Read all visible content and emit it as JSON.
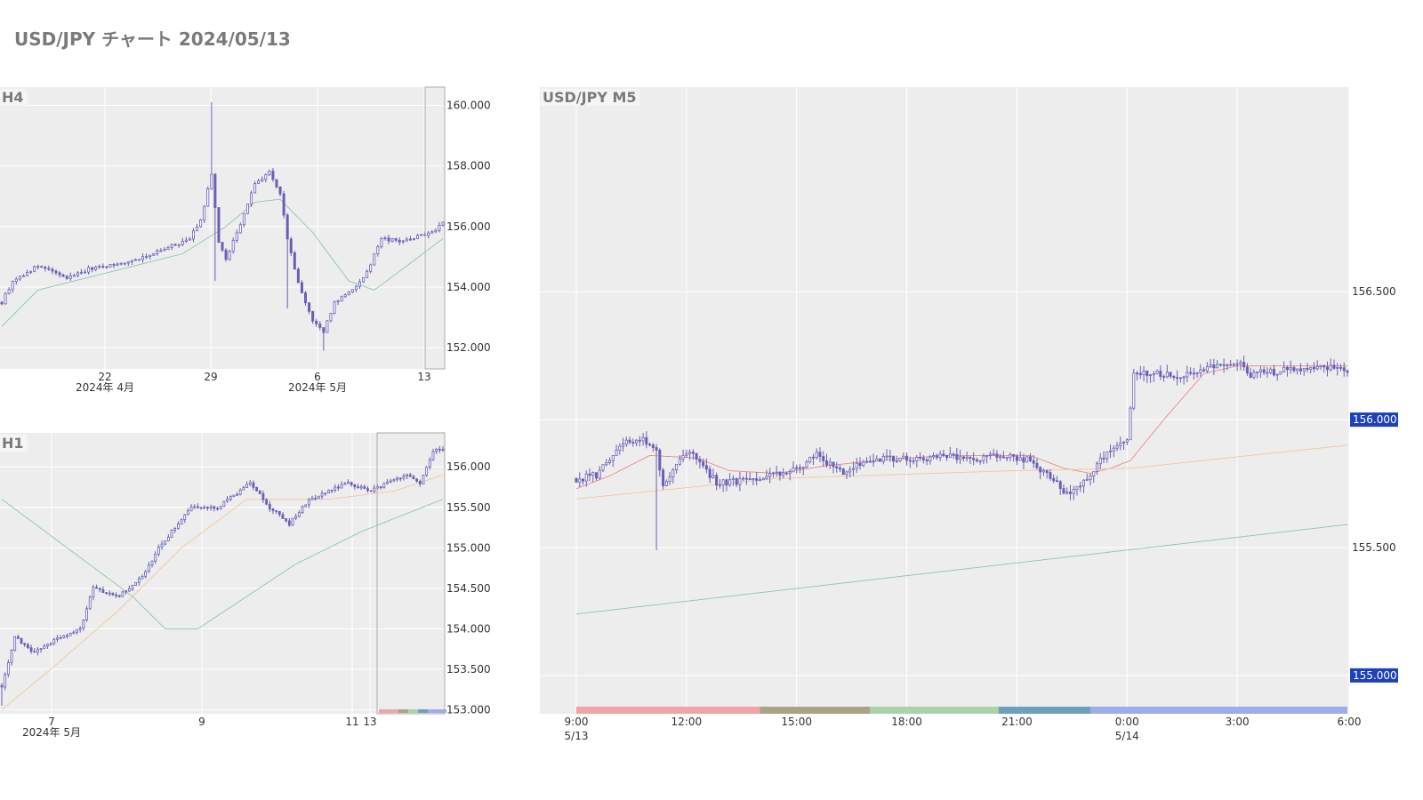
{
  "page": {
    "title": "USD/JPY チャート 2024/05/13"
  },
  "colors": {
    "plot_bg": "#ededed",
    "grid": "#ffffff",
    "candle": "#6a5fb5",
    "ma_short": "#e88a8a",
    "ma_mid": "#f0c89a",
    "ma_long": "#8fc4b0",
    "highlight_bg": "#1e40b8",
    "sessions": [
      "#eea4aa",
      "#aaa285",
      "#a9d3a8",
      "#6f9fbf",
      "#9eacea"
    ]
  },
  "chart_data": [
    {
      "id": "h4",
      "type": "candlestick",
      "title": "H4",
      "ylim": [
        151.3,
        160.6
      ],
      "y_ticks": [
        "160.000",
        "158.000",
        "156.000",
        "154.000",
        "152.000"
      ],
      "x_ticks": [
        "22",
        "29",
        "6",
        "13"
      ],
      "x_month_labels": [
        "2024年 4月",
        "2024年 5月"
      ],
      "anchors": [
        {
          "t": 0,
          "p": 153.5
        },
        {
          "t": 3,
          "p": 154.2
        },
        {
          "t": 10,
          "p": 154.7
        },
        {
          "t": 18,
          "p": 154.3
        },
        {
          "t": 24,
          "p": 154.6
        },
        {
          "t": 34,
          "p": 154.8
        },
        {
          "t": 44,
          "p": 155.2
        },
        {
          "t": 52,
          "p": 155.6
        },
        {
          "t": 55,
          "p": 156.2
        },
        {
          "t": 58,
          "p": 157.7
        },
        {
          "t": 60,
          "p": 155.5
        },
        {
          "t": 62,
          "p": 154.9
        },
        {
          "t": 66,
          "p": 156.1
        },
        {
          "t": 70,
          "p": 157.4
        },
        {
          "t": 74,
          "p": 157.8
        },
        {
          "t": 77,
          "p": 157.1
        },
        {
          "t": 79,
          "p": 155.6
        },
        {
          "t": 82,
          "p": 154.1
        },
        {
          "t": 86,
          "p": 152.9
        },
        {
          "t": 89,
          "p": 152.5
        },
        {
          "t": 92,
          "p": 153.5
        },
        {
          "t": 97,
          "p": 153.9
        },
        {
          "t": 101,
          "p": 154.5
        },
        {
          "t": 105,
          "p": 155.6
        },
        {
          "t": 110,
          "p": 155.5
        },
        {
          "t": 116,
          "p": 155.7
        },
        {
          "t": 120,
          "p": 155.9
        },
        {
          "t": 122,
          "p": 156.2
        }
      ],
      "ma": [
        {
          "name": "",
          "color": "#8fc4b0",
          "points": [
            {
              "t": 0,
              "p": 152.7
            },
            {
              "t": 10,
              "p": 153.9
            },
            {
              "t": 30,
              "p": 154.5
            },
            {
              "t": 50,
              "p": 155.1
            },
            {
              "t": 62,
              "p": 156.0
            },
            {
              "t": 70,
              "p": 156.8
            },
            {
              "t": 77,
              "p": 156.9
            },
            {
              "t": 86,
              "p": 155.8
            },
            {
              "t": 96,
              "p": 154.2
            },
            {
              "t": 103,
              "p": 153.9
            },
            {
              "t": 112,
              "p": 154.7
            },
            {
              "t": 122,
              "p": 155.6
            }
          ]
        }
      ]
    },
    {
      "id": "h1",
      "type": "candlestick",
      "title": "H1",
      "ylim": [
        152.95,
        156.42
      ],
      "y_ticks": [
        "156.000",
        "155.500",
        "155.000",
        "154.500",
        "154.000",
        "153.500",
        "153.000"
      ],
      "x_ticks": [
        "7",
        "9",
        "11",
        "13"
      ],
      "x_month_labels": [
        "2024年 5月"
      ],
      "anchors": [
        {
          "t": 0,
          "p": 153.3
        },
        {
          "t": 4,
          "p": 153.9
        },
        {
          "t": 10,
          "p": 153.7
        },
        {
          "t": 18,
          "p": 153.9
        },
        {
          "t": 24,
          "p": 154.0
        },
        {
          "t": 28,
          "p": 154.5
        },
        {
          "t": 36,
          "p": 154.4
        },
        {
          "t": 44,
          "p": 154.7
        },
        {
          "t": 48,
          "p": 155.0
        },
        {
          "t": 52,
          "p": 155.2
        },
        {
          "t": 58,
          "p": 155.5
        },
        {
          "t": 66,
          "p": 155.5
        },
        {
          "t": 76,
          "p": 155.8
        },
        {
          "t": 82,
          "p": 155.5
        },
        {
          "t": 88,
          "p": 155.3
        },
        {
          "t": 94,
          "p": 155.6
        },
        {
          "t": 100,
          "p": 155.7
        },
        {
          "t": 106,
          "p": 155.8
        },
        {
          "t": 112,
          "p": 155.7
        },
        {
          "t": 118,
          "p": 155.8
        },
        {
          "t": 124,
          "p": 155.9
        },
        {
          "t": 128,
          "p": 155.8
        },
        {
          "t": 132,
          "p": 156.2
        },
        {
          "t": 135,
          "p": 156.2
        }
      ],
      "ma": [
        {
          "name": "",
          "color": "#8fc4b0",
          "points": [
            {
              "t": 0,
              "p": 155.6
            },
            {
              "t": 20,
              "p": 155.0
            },
            {
              "t": 40,
              "p": 154.4
            },
            {
              "t": 50,
              "p": 154.0
            },
            {
              "t": 60,
              "p": 154.0
            },
            {
              "t": 75,
              "p": 154.4
            },
            {
              "t": 90,
              "p": 154.8
            },
            {
              "t": 110,
              "p": 155.2
            },
            {
              "t": 135,
              "p": 155.6
            }
          ]
        },
        {
          "name": "",
          "color": "#f0c89a",
          "points": [
            {
              "t": 0,
              "p": 153.0
            },
            {
              "t": 15,
              "p": 153.5
            },
            {
              "t": 35,
              "p": 154.2
            },
            {
              "t": 55,
              "p": 155.0
            },
            {
              "t": 75,
              "p": 155.6
            },
            {
              "t": 100,
              "p": 155.6
            },
            {
              "t": 120,
              "p": 155.7
            },
            {
              "t": 135,
              "p": 155.9
            }
          ]
        }
      ]
    },
    {
      "id": "m5",
      "type": "candlestick",
      "title": "USD/JPY M5",
      "ylim": [
        154.85,
        157.3
      ],
      "y_ticks": [
        "156.500",
        "156.000",
        "155.500",
        "155.000"
      ],
      "highlighted_y_ticks": [
        "156.000",
        "155.000"
      ],
      "x_ticks": [
        {
          "label": "9:00",
          "sub": "5/13"
        },
        {
          "label": "12:00",
          "sub": ""
        },
        {
          "label": "15:00",
          "sub": ""
        },
        {
          "label": "18:00",
          "sub": ""
        },
        {
          "label": "21:00",
          "sub": ""
        },
        {
          "label": "0:00",
          "sub": "5/14"
        },
        {
          "label": "3:00",
          "sub": ""
        },
        {
          "label": "6:00",
          "sub": ""
        }
      ],
      "anchors": [
        {
          "t": 0,
          "p": 155.77
        },
        {
          "t": 6,
          "p": 155.78
        },
        {
          "t": 10,
          "p": 155.85
        },
        {
          "t": 14,
          "p": 155.9
        },
        {
          "t": 18,
          "p": 155.93
        },
        {
          "t": 22,
          "p": 155.91
        },
        {
          "t": 24,
          "p": 155.88
        },
        {
          "t": 26,
          "p": 155.75
        },
        {
          "t": 30,
          "p": 155.82
        },
        {
          "t": 34,
          "p": 155.88
        },
        {
          "t": 38,
          "p": 155.82
        },
        {
          "t": 42,
          "p": 155.75
        },
        {
          "t": 48,
          "p": 155.76
        },
        {
          "t": 54,
          "p": 155.77
        },
        {
          "t": 60,
          "p": 155.79
        },
        {
          "t": 66,
          "p": 155.8
        },
        {
          "t": 70,
          "p": 155.84
        },
        {
          "t": 72,
          "p": 155.86
        },
        {
          "t": 76,
          "p": 155.82
        },
        {
          "t": 80,
          "p": 155.8
        },
        {
          "t": 84,
          "p": 155.83
        },
        {
          "t": 90,
          "p": 155.85
        },
        {
          "t": 96,
          "p": 155.84
        },
        {
          "t": 104,
          "p": 155.85
        },
        {
          "t": 112,
          "p": 155.86
        },
        {
          "t": 120,
          "p": 155.85
        },
        {
          "t": 130,
          "p": 155.86
        },
        {
          "t": 136,
          "p": 155.84
        },
        {
          "t": 142,
          "p": 155.78
        },
        {
          "t": 146,
          "p": 155.72
        },
        {
          "t": 150,
          "p": 155.73
        },
        {
          "t": 154,
          "p": 155.78
        },
        {
          "t": 158,
          "p": 155.86
        },
        {
          "t": 162,
          "p": 155.89
        },
        {
          "t": 165,
          "p": 155.92
        },
        {
          "t": 167,
          "p": 156.18
        },
        {
          "t": 172,
          "p": 156.18
        },
        {
          "t": 180,
          "p": 156.17
        },
        {
          "t": 186,
          "p": 156.19
        },
        {
          "t": 194,
          "p": 156.22
        },
        {
          "t": 198,
          "p": 156.23
        },
        {
          "t": 202,
          "p": 156.18
        },
        {
          "t": 210,
          "p": 156.19
        },
        {
          "t": 220,
          "p": 156.2
        },
        {
          "t": 228,
          "p": 156.21
        },
        {
          "t": 231,
          "p": 156.19
        }
      ],
      "ma": [
        {
          "name": "",
          "color": "#e88a8a",
          "points": [
            {
              "t": 0,
              "p": 155.73
            },
            {
              "t": 10,
              "p": 155.78
            },
            {
              "t": 22,
              "p": 155.86
            },
            {
              "t": 36,
              "p": 155.85
            },
            {
              "t": 46,
              "p": 155.8
            },
            {
              "t": 60,
              "p": 155.79
            },
            {
              "t": 75,
              "p": 155.82
            },
            {
              "t": 90,
              "p": 155.84
            },
            {
              "t": 110,
              "p": 155.86
            },
            {
              "t": 136,
              "p": 155.86
            },
            {
              "t": 146,
              "p": 155.81
            },
            {
              "t": 154,
              "p": 155.79
            },
            {
              "t": 160,
              "p": 155.81
            },
            {
              "t": 166,
              "p": 155.84
            },
            {
              "t": 176,
              "p": 156.0
            },
            {
              "t": 188,
              "p": 156.18
            },
            {
              "t": 198,
              "p": 156.21
            },
            {
              "t": 231,
              "p": 156.21
            }
          ]
        },
        {
          "name": "",
          "color": "#f0c89a",
          "points": [
            {
              "t": 0,
              "p": 155.69
            },
            {
              "t": 60,
              "p": 155.77
            },
            {
              "t": 130,
              "p": 155.8
            },
            {
              "t": 166,
              "p": 155.81
            },
            {
              "t": 231,
              "p": 155.9
            }
          ]
        },
        {
          "name": "",
          "color": "#8fc4b0",
          "points": [
            {
              "t": 0,
              "p": 155.24
            },
            {
              "t": 231,
              "p": 155.59
            }
          ]
        }
      ],
      "sessions": [
        {
          "from": 0,
          "to": 5
        },
        {
          "from": 5,
          "to": 8
        },
        {
          "from": 8,
          "to": 11.5
        },
        {
          "from": 11.5,
          "to": 14
        },
        {
          "from": 14,
          "to": 21
        }
      ]
    }
  ]
}
